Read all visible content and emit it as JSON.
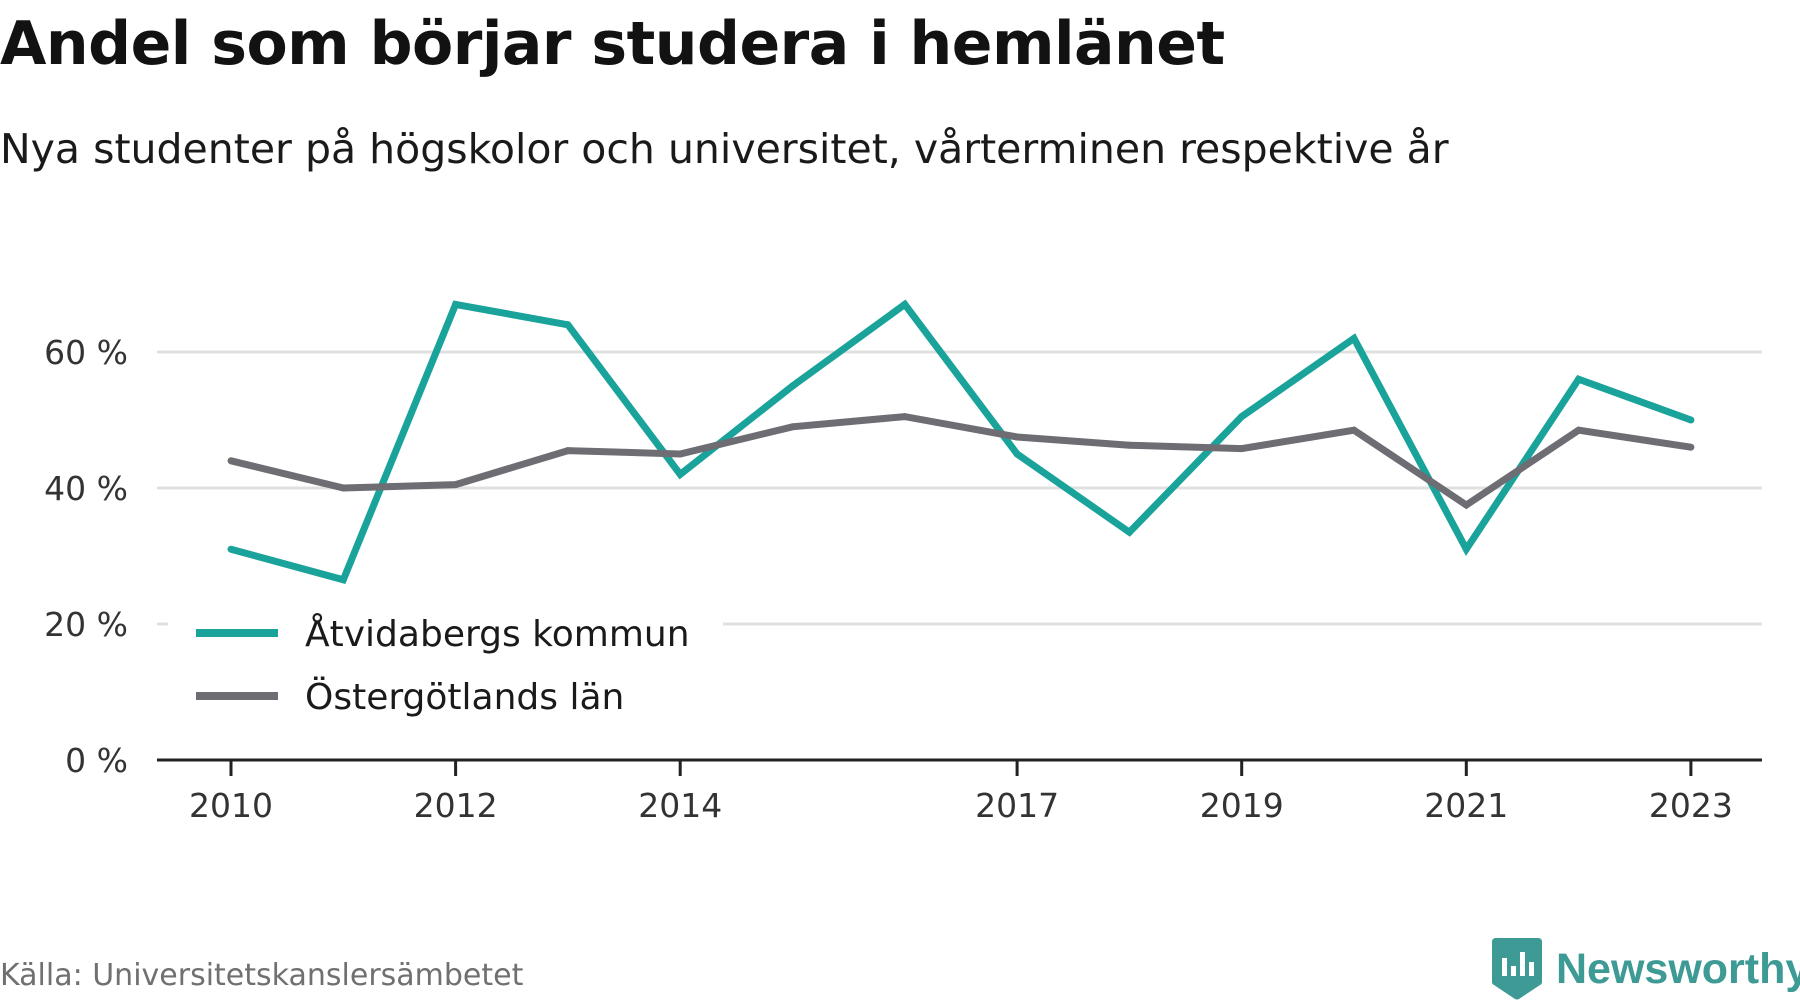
{
  "title": "Andel som börjar studera i hemlänet",
  "subtitle": "Nya studenter på högskolor och universitet, vårterminen respektive år",
  "source": "Källa: Universitetskanslersämbetet",
  "brand": {
    "name": "Newsworthy",
    "icon": "newsworthy-logo-icon",
    "color": "#3d9a94"
  },
  "chart_data": {
    "type": "line",
    "x": [
      2010,
      2011,
      2012,
      2013,
      2014,
      2015,
      2016,
      2017,
      2018,
      2019,
      2020,
      2021,
      2022,
      2023
    ],
    "x_tick_values": [
      2010,
      2012,
      2014,
      2017,
      2019,
      2021,
      2023
    ],
    "x_tick_labels": [
      "2010",
      "2012",
      "2014",
      "2017",
      "2019",
      "2021",
      "2023"
    ],
    "y_ticks": [
      0,
      20,
      40,
      60
    ],
    "y_tick_labels": [
      "0 %",
      "20 %",
      "40 %",
      "60 %"
    ],
    "ylim": [
      0,
      70
    ],
    "grid": true,
    "legend_position": "bottom-left",
    "series": [
      {
        "name": "Åtvidabergs kommun",
        "color": "#1aa39a",
        "values": [
          31,
          26.5,
          67,
          64,
          42,
          55,
          67,
          45,
          33.5,
          50.5,
          62,
          31,
          56,
          50
        ]
      },
      {
        "name": "Östergötlands län",
        "color": "#6e6d73",
        "values": [
          44,
          40,
          40.5,
          45.5,
          45,
          49,
          50.5,
          47.5,
          46.3,
          45.8,
          48.5,
          37.5,
          48.5,
          46
        ]
      }
    ]
  }
}
